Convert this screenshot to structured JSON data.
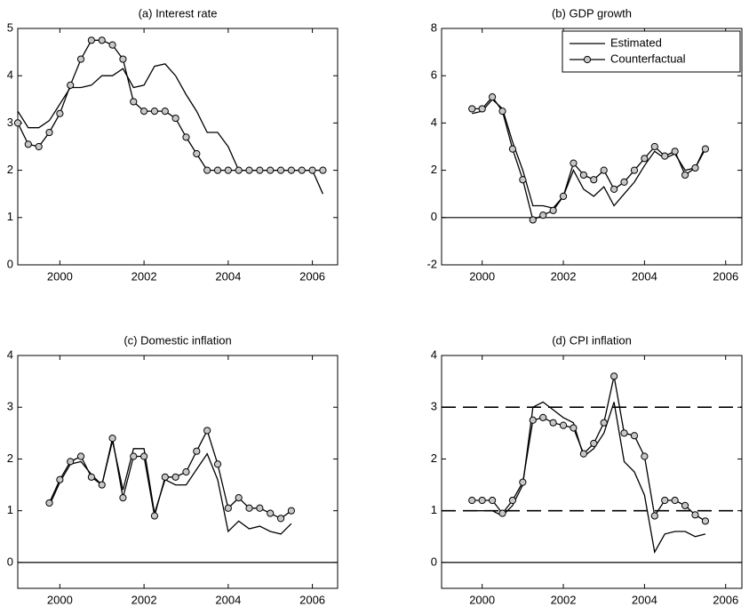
{
  "chart_data": [
    {
      "type": "line",
      "title": "(a) Interest rate",
      "x": [
        1999.0,
        1999.25,
        1999.5,
        1999.75,
        2000.0,
        2000.25,
        2000.5,
        2000.75,
        2001.0,
        2001.25,
        2001.5,
        2001.75,
        2002.0,
        2002.25,
        2002.5,
        2002.75,
        2003.0,
        2003.25,
        2003.5,
        2003.75,
        2004.0,
        2004.25,
        2004.5,
        2004.75,
        2005.0,
        2005.25,
        2005.5,
        2005.75,
        2006.0,
        2006.25
      ],
      "series": [
        {
          "color": "#000000",
          "marker": "none",
          "values": [
            3.25,
            2.9,
            2.9,
            3.05,
            3.4,
            3.75,
            3.75,
            3.8,
            4.0,
            4.0,
            4.15,
            3.75,
            3.8,
            4.2,
            4.25,
            4.0,
            3.6,
            3.25,
            2.8,
            2.8,
            2.5,
            2.0,
            2.0,
            2.0,
            2.0,
            2.0,
            2.0,
            2.0,
            2.0,
            1.5
          ]
        },
        {
          "color": "#000000",
          "marker": "circle",
          "values": [
            3.0,
            2.55,
            2.5,
            2.8,
            3.2,
            3.8,
            4.35,
            4.75,
            4.75,
            4.65,
            4.35,
            3.45,
            3.25,
            3.25,
            3.25,
            3.1,
            2.7,
            2.35,
            2.0,
            2.0,
            2.0,
            2.0,
            2.0,
            2.0,
            2.0,
            2.0,
            2.0,
            2.0,
            2.0,
            2.0
          ]
        }
      ],
      "xlim": [
        1999,
        2006.6
      ],
      "xticks": [
        2000,
        2002,
        2004,
        2006
      ],
      "ylim": [
        0,
        5
      ],
      "yticks": [
        0,
        1,
        2,
        3,
        4,
        5
      ]
    },
    {
      "type": "line",
      "title": "(b) GDP growth",
      "x": [
        1999.75,
        2000.0,
        2000.25,
        2000.5,
        2000.75,
        2001.0,
        2001.25,
        2001.5,
        2001.75,
        2002.0,
        2002.25,
        2002.5,
        2002.75,
        2003.0,
        2003.25,
        2003.5,
        2003.75,
        2004.0,
        2004.25,
        2004.5,
        2004.75,
        2005.0,
        2005.25,
        2005.5
      ],
      "series": [
        {
          "name": "Estimated",
          "color": "#000000",
          "marker": "none",
          "values": [
            4.4,
            4.5,
            5.0,
            4.6,
            3.2,
            2.0,
            0.5,
            0.5,
            0.4,
            0.9,
            2.0,
            1.2,
            0.9,
            1.3,
            0.5,
            1.0,
            1.5,
            2.2,
            2.8,
            2.5,
            2.7,
            2.0,
            2.1,
            3.0
          ]
        },
        {
          "name": "Counterfactual",
          "color": "#000000",
          "marker": "circle",
          "values": [
            4.6,
            4.6,
            5.1,
            4.5,
            2.9,
            1.6,
            -0.1,
            0.1,
            0.3,
            0.9,
            2.3,
            1.8,
            1.6,
            2.0,
            1.2,
            1.5,
            2.0,
            2.5,
            3.0,
            2.6,
            2.8,
            1.8,
            2.1,
            2.9
          ]
        }
      ],
      "xlim": [
        1999,
        2006.4
      ],
      "xticks": [
        2000,
        2002,
        2004,
        2006
      ],
      "ylim": [
        -2,
        8
      ],
      "yticks": [
        -2,
        0,
        2,
        4,
        6,
        8
      ],
      "hlines": [
        {
          "y": 0,
          "style": "solid"
        }
      ],
      "legend": "upper right"
    },
    {
      "type": "line",
      "title": "(c) Domestic inflation",
      "x": [
        1999.75,
        2000.0,
        2000.25,
        2000.5,
        2000.75,
        2001.0,
        2001.25,
        2001.5,
        2001.75,
        2002.0,
        2002.25,
        2002.5,
        2002.75,
        2003.0,
        2003.25,
        2003.5,
        2003.75,
        2004.0,
        2004.25,
        2004.5,
        2004.75,
        2005.0,
        2005.25,
        2005.5
      ],
      "series": [
        {
          "color": "#000000",
          "marker": "none",
          "values": [
            1.1,
            1.55,
            1.9,
            1.95,
            1.7,
            1.5,
            2.35,
            1.4,
            2.2,
            2.2,
            0.95,
            1.6,
            1.5,
            1.5,
            1.8,
            2.1,
            1.6,
            0.6,
            0.8,
            0.65,
            0.7,
            0.6,
            0.55,
            0.75
          ]
        },
        {
          "color": "#000000",
          "marker": "circle",
          "values": [
            1.15,
            1.6,
            1.95,
            2.05,
            1.65,
            1.5,
            2.4,
            1.25,
            2.05,
            2.05,
            0.9,
            1.65,
            1.65,
            1.75,
            2.15,
            2.55,
            1.9,
            1.05,
            1.25,
            1.05,
            1.05,
            0.95,
            0.85,
            1.0
          ]
        }
      ],
      "xlim": [
        1999,
        2006.6
      ],
      "xticks": [
        2000,
        2002,
        2004,
        2006
      ],
      "ylim": [
        -0.5,
        4
      ],
      "yticks": [
        0,
        1,
        2,
        3,
        4
      ],
      "hlines": [
        {
          "y": 0,
          "style": "solid"
        }
      ]
    },
    {
      "type": "line",
      "title": "(d) CPI inflation",
      "x": [
        1999.75,
        2000.0,
        2000.25,
        2000.5,
        2000.75,
        2001.0,
        2001.25,
        2001.5,
        2001.75,
        2002.0,
        2002.25,
        2002.5,
        2002.75,
        2003.0,
        2003.25,
        2003.5,
        2003.75,
        2004.0,
        2004.25,
        2004.5,
        2004.75,
        2005.0,
        2005.25,
        2005.5
      ],
      "series": [
        {
          "color": "#000000",
          "marker": "none",
          "values": [
            1.0,
            1.0,
            1.0,
            0.9,
            1.1,
            1.5,
            3.0,
            3.1,
            2.95,
            2.8,
            2.7,
            2.05,
            2.2,
            2.5,
            3.1,
            1.95,
            1.75,
            1.3,
            0.2,
            0.55,
            0.6,
            0.6,
            0.5,
            0.55
          ]
        },
        {
          "color": "#000000",
          "marker": "circle",
          "values": [
            1.2,
            1.2,
            1.2,
            0.95,
            1.2,
            1.55,
            2.75,
            2.8,
            2.7,
            2.65,
            2.6,
            2.1,
            2.3,
            2.7,
            3.6,
            2.5,
            2.45,
            2.05,
            0.9,
            1.2,
            1.2,
            1.1,
            0.92,
            0.8
          ]
        }
      ],
      "xlim": [
        1999,
        2006.4
      ],
      "xticks": [
        2000,
        2002,
        2004,
        2006
      ],
      "ylim": [
        -0.5,
        4
      ],
      "yticks": [
        0,
        1,
        2,
        3,
        4
      ],
      "hlines": [
        {
          "y": 0,
          "style": "solid"
        },
        {
          "y": 1,
          "style": "dashed"
        },
        {
          "y": 3,
          "style": "dashed"
        }
      ]
    }
  ]
}
